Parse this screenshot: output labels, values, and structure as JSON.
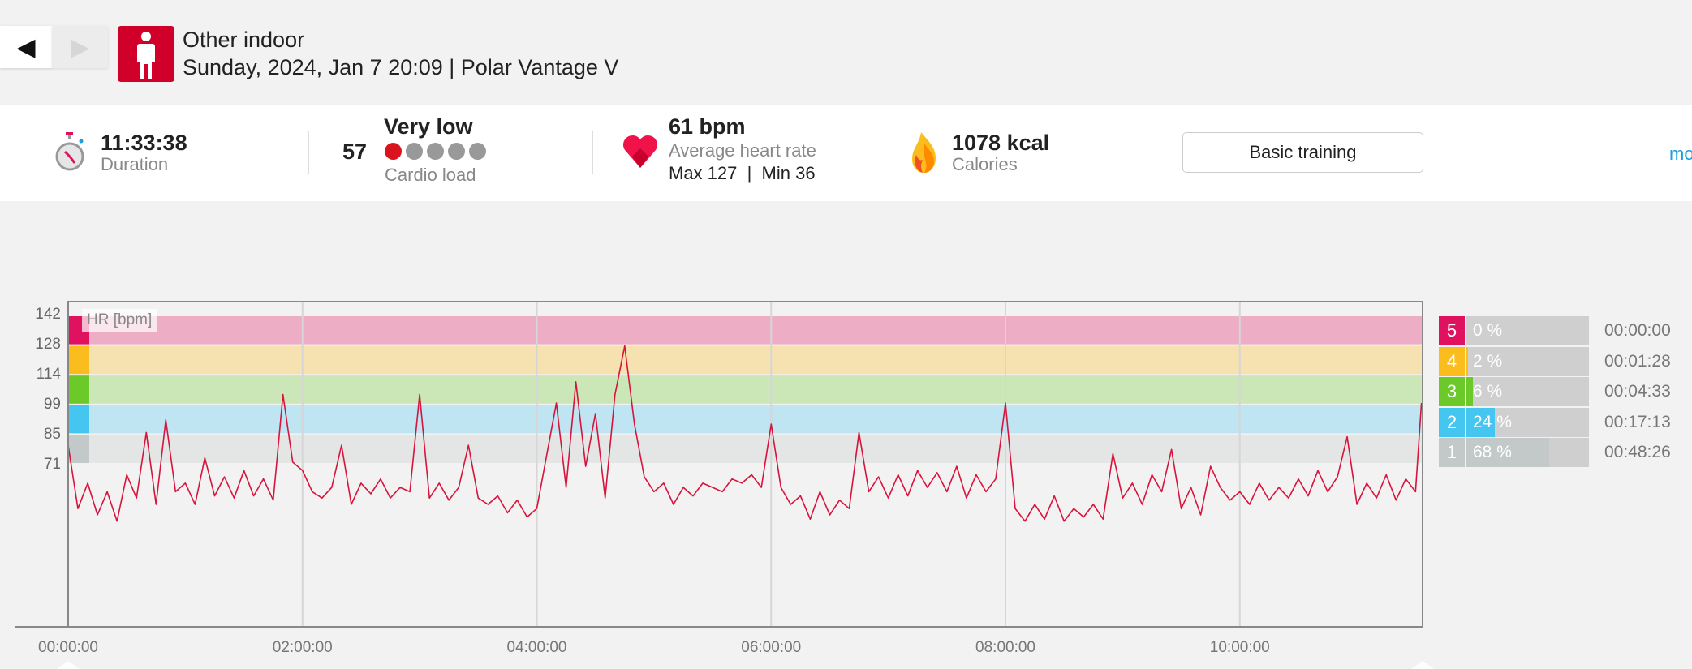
{
  "nav": {
    "back_icon": "◀",
    "forward_icon": "▶"
  },
  "header": {
    "sport": "Other indoor",
    "date_line": "Sunday, 2024, Jan 7 20:09 | Polar Vantage V",
    "sport_icon": "person-standing-icon"
  },
  "stats": {
    "duration": {
      "value": "11:33:38",
      "label": "Duration"
    },
    "cardio": {
      "score": "57",
      "level": "Very low",
      "label": "Cardio load",
      "filled_dots": 1,
      "total_dots": 5
    },
    "hr": {
      "value": "61 bpm",
      "label": "Average heart rate",
      "max_min": "Max 127  |  Min 36"
    },
    "calories": {
      "value": "1078 kcal",
      "label": "Calories"
    },
    "training_button": "Basic training",
    "more_link": "mo"
  },
  "colors": {
    "accent": "#d0002b",
    "line": "#d7143c",
    "link": "#1a9ee0",
    "zone5": "#e0115f",
    "zone4": "#fbbd1e",
    "zone3": "#6bca2a",
    "zone2": "#45c6f0",
    "zone1": "#c2c9c8"
  },
  "chart_data": {
    "type": "line",
    "title": "HR [bpm]",
    "ylabel": "HR [bpm]",
    "xlabel": "",
    "ylim": [
      -6,
      148
    ],
    "xlim_minutes": [
      0,
      693.6
    ],
    "ytick_labels": [
      "142",
      "128",
      "114",
      "99",
      "85",
      "71"
    ],
    "xtick_labels": [
      "00:00:00",
      "02:00:00",
      "04:00:00",
      "06:00:00",
      "08:00:00",
      "10:00:00"
    ],
    "grid": "vertical",
    "zones": [
      {
        "zone": "5",
        "from": 128,
        "to": 142,
        "band": "#edadc4"
      },
      {
        "zone": "4",
        "from": 114,
        "to": 128,
        "band": "#f6e2b0"
      },
      {
        "zone": "3",
        "from": 99,
        "to": 114,
        "band": "#cbe6b7"
      },
      {
        "zone": "2",
        "from": 85,
        "to": 99,
        "band": "#bfe4f2"
      },
      {
        "zone": "1",
        "from": 71,
        "to": 85,
        "band": "#e4e6e5"
      }
    ],
    "series": [
      {
        "name": "HR",
        "x_minutes": [
          0,
          5,
          10,
          15,
          20,
          25,
          30,
          35,
          40,
          45,
          50,
          55,
          60,
          65,
          70,
          75,
          80,
          85,
          90,
          95,
          100,
          105,
          110,
          115,
          120,
          125,
          130,
          135,
          140,
          145,
          150,
          155,
          160,
          165,
          170,
          175,
          180,
          185,
          190,
          195,
          200,
          205,
          210,
          215,
          220,
          225,
          230,
          235,
          240,
          245,
          250,
          255,
          260,
          265,
          270,
          275,
          280,
          285,
          290,
          295,
          300,
          305,
          310,
          315,
          320,
          325,
          330,
          335,
          340,
          345,
          350,
          355,
          360,
          365,
          370,
          375,
          380,
          385,
          390,
          395,
          400,
          405,
          410,
          415,
          420,
          425,
          430,
          435,
          440,
          445,
          450,
          455,
          460,
          465,
          470,
          475,
          480,
          485,
          490,
          495,
          500,
          505,
          510,
          515,
          520,
          525,
          530,
          535,
          540,
          545,
          550,
          555,
          560,
          565,
          570,
          575,
          580,
          585,
          590,
          595,
          600,
          605,
          610,
          615,
          620,
          625,
          630,
          635,
          640,
          645,
          650,
          655,
          660,
          665,
          670,
          675,
          680,
          685,
          690,
          693
        ],
        "values": [
          80,
          50,
          62,
          47,
          58,
          44,
          66,
          55,
          86,
          52,
          92,
          58,
          62,
          52,
          74,
          56,
          65,
          55,
          68,
          56,
          64,
          54,
          104,
          72,
          68,
          58,
          55,
          60,
          80,
          52,
          62,
          57,
          64,
          55,
          60,
          58,
          104,
          55,
          62,
          54,
          60,
          80,
          55,
          52,
          56,
          48,
          54,
          46,
          50,
          75,
          100,
          60,
          110,
          70,
          95,
          55,
          104,
          127,
          90,
          65,
          58,
          62,
          52,
          60,
          56,
          62,
          60,
          58,
          64,
          62,
          66,
          60,
          90,
          60,
          52,
          56,
          45,
          58,
          47,
          54,
          50,
          86,
          58,
          65,
          55,
          66,
          56,
          68,
          60,
          67,
          58,
          70,
          55,
          66,
          58,
          64,
          100,
          50,
          44,
          52,
          45,
          56,
          44,
          50,
          46,
          52,
          45,
          76,
          55,
          62,
          52,
          66,
          58,
          78,
          50,
          60,
          47,
          70,
          60,
          54,
          58,
          52,
          62,
          54,
          60,
          55,
          64,
          56,
          68,
          58,
          65,
          84,
          52,
          62,
          55,
          66,
          54,
          64,
          58,
          100
        ]
      }
    ]
  },
  "zone_summary": [
    {
      "zone": "5",
      "percent": 0,
      "percent_label": "0 %",
      "time": "00:00:00"
    },
    {
      "zone": "4",
      "percent": 2,
      "percent_label": "2 %",
      "time": "00:01:28"
    },
    {
      "zone": "3",
      "percent": 6,
      "percent_label": "6 %",
      "time": "00:04:33"
    },
    {
      "zone": "2",
      "percent": 24,
      "percent_label": "24 %",
      "time": "00:17:13"
    },
    {
      "zone": "1",
      "percent": 68,
      "percent_label": "68 %",
      "time": "00:48:26"
    }
  ]
}
